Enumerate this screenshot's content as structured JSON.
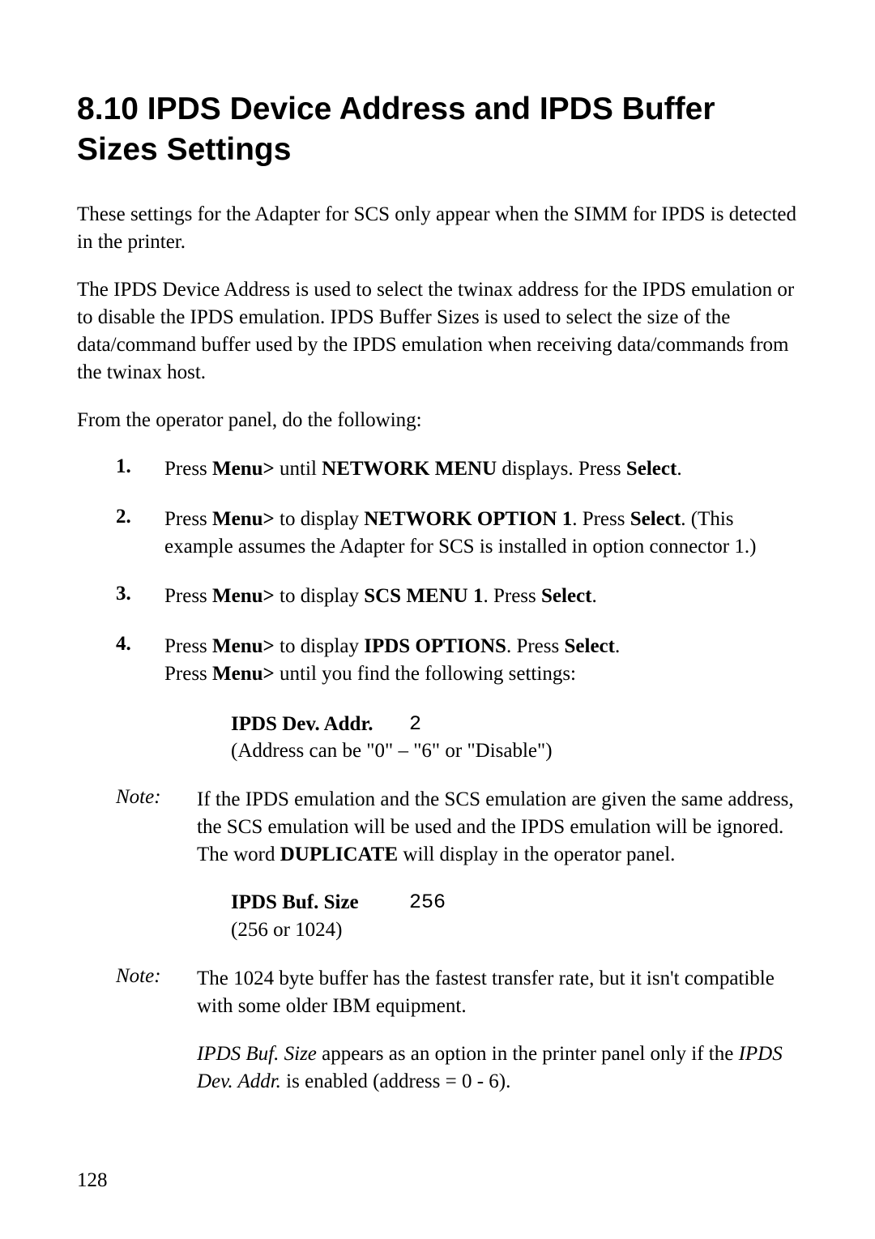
{
  "heading": "8.10 IPDS Device Address and IPDS Buffer Sizes Settings",
  "para1": "These settings for the Adapter for SCS only appear when the SIMM for IPDS is detected in the printer.",
  "para2": "The IPDS Device Address is used to select the twinax address for the IPDS emulation or to disable the IPDS emulation. IPDS Buffer Sizes is used to select the size of the data/command buffer used by the IPDS emulation when receiving data/commands from the twinax host.",
  "para3": "From the operator panel, do the following:",
  "steps": {
    "s1_num": "1.",
    "s1_a": "Press ",
    "s1_b": "Menu>",
    "s1_c": " until ",
    "s1_d": "NETWORK MENU",
    "s1_e": " displays. Press ",
    "s1_f": "Select",
    "s1_g": ".",
    "s2_num": "2.",
    "s2_a": "Press ",
    "s2_b": "Menu>",
    "s2_c": " to display ",
    "s2_d": "NETWORK OPTION 1",
    "s2_e": ". Press ",
    "s2_f": "Select",
    "s2_g": ". (This example assumes the Adapter for SCS is installed in option connector 1.)",
    "s3_num": "3.",
    "s3_a": "Press ",
    "s3_b": "Menu>",
    "s3_c": " to display ",
    "s3_d": "SCS MENU 1",
    "s3_e": ". Press ",
    "s3_f": "Select",
    "s3_g": ".",
    "s4_num": "4.",
    "s4_a": "Press ",
    "s4_b": "Menu>",
    "s4_c": " to display ",
    "s4_d": "IPDS OPTIONS",
    "s4_e": ". Press ",
    "s4_f": "Select",
    "s4_g": ".",
    "s4_h": "Press ",
    "s4_i": "Menu>",
    "s4_j": " until you find the following settings:"
  },
  "setting1": {
    "label": "IPDS Dev. Addr.",
    "value": "2",
    "sub": "(Address can be \"0\" – \"6\" or \"Disable\")"
  },
  "note1": {
    "label": "Note:",
    "a": "If the IPDS emulation and the SCS emulation are given the same address, the SCS emulation will be used and the IPDS emulation will be ignored. The word ",
    "b": "DUPLICATE",
    "c": " will display in the operator panel."
  },
  "setting2": {
    "label": "IPDS Buf. Size",
    "value": "256",
    "sub": "(256 or 1024)"
  },
  "note2": {
    "label": "Note:",
    "text": "The 1024 byte buffer has the fastest transfer rate, but it isn't compatible with some older IBM equipment."
  },
  "closing": {
    "a": "IPDS Buf. Size",
    "b": " appears as an option in the printer panel only if the ",
    "c": "IPDS Dev. Addr.",
    "d": " is enabled (address = 0 - 6)."
  },
  "page_number": "128"
}
